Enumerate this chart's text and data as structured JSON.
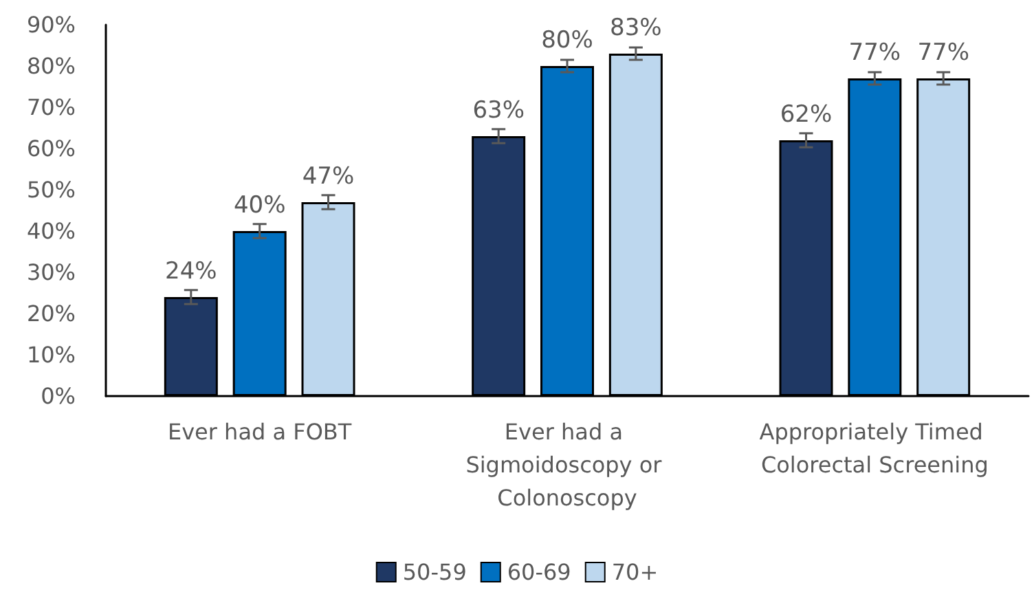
{
  "chart_data": {
    "type": "bar",
    "categories": [
      "Ever had a FOBT",
      "Ever had a Sigmoidoscopy or Colonoscopy",
      "Appropriately Timed Colorectal Screening"
    ],
    "series": [
      {
        "name": "50-59",
        "color": "#1f3864",
        "values": [
          24,
          63,
          62
        ],
        "value_labels": [
          "24%",
          "63%",
          "62%"
        ],
        "errors": [
          1.7,
          1.7,
          1.7
        ]
      },
      {
        "name": "60-69",
        "color": "#0070c0",
        "values": [
          40,
          80,
          77
        ],
        "value_labels": [
          "40%",
          "80%",
          "77%"
        ],
        "errors": [
          1.7,
          1.5,
          1.5
        ]
      },
      {
        "name": "70+",
        "color": "#bdd7ee",
        "values": [
          47,
          83,
          77
        ],
        "value_labels": [
          "47%",
          "83%",
          "77%"
        ],
        "errors": [
          1.7,
          1.5,
          1.5
        ]
      }
    ],
    "ylim": [
      0,
      90
    ],
    "yticks": [
      {
        "value": 0,
        "label": "0%"
      },
      {
        "value": 10,
        "label": "10%"
      },
      {
        "value": 20,
        "label": "20%"
      },
      {
        "value": 30,
        "label": "30%"
      },
      {
        "value": 40,
        "label": "40%"
      },
      {
        "value": 50,
        "label": "50%"
      },
      {
        "value": 60,
        "label": "60%"
      },
      {
        "value": 70,
        "label": "70%"
      },
      {
        "value": 80,
        "label": "80%"
      },
      {
        "value": 90,
        "label": "90%"
      }
    ],
    "grid": false,
    "legend": "bottom"
  }
}
